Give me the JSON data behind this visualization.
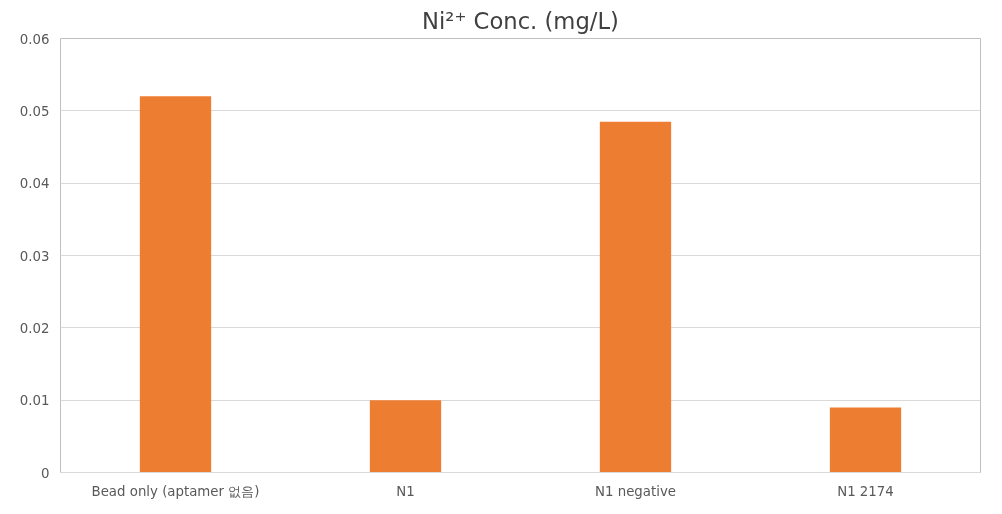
{
  "chart_data": {
    "type": "bar",
    "title": "Ni²⁺ Conc. (mg/L)",
    "categories": [
      "Bead only (aptamer 없음)",
      "N1",
      "N1 negative",
      "N1 2174"
    ],
    "values": [
      0.052,
      0.01,
      0.0485,
      0.009
    ],
    "color": "#ed7d31",
    "ylim": [
      0,
      0.06
    ],
    "yticks": [
      {
        "value": 0,
        "label": "0"
      },
      0.01,
      0.02,
      0.03,
      0.04,
      0.05,
      0.06
    ],
    "grid": "y"
  }
}
